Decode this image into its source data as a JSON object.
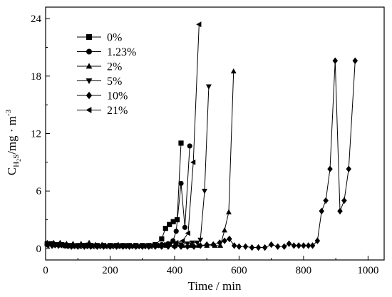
{
  "chart_data": {
    "type": "line",
    "title": "",
    "xlabel": "Time / min",
    "ylabel": {
      "main": "C",
      "sub": "H",
      "subsub": "2",
      "after_sub": "S",
      "unit": "/mg · m",
      "unit_sup": "-3"
    },
    "xlim": [
      0,
      1050
    ],
    "ylim": [
      -1.2,
      25.2
    ],
    "xticks": [
      0,
      200,
      400,
      600,
      800,
      1000
    ],
    "xtick_labels": [
      "0",
      "200",
      "400",
      "600",
      "800",
      "1000"
    ],
    "yticks": [
      0,
      6,
      12,
      18,
      24
    ],
    "ytick_labels": [
      "0",
      "6",
      "12",
      "18",
      "24"
    ],
    "grid": false,
    "legend_position": "top-left",
    "series": [
      {
        "name": "0%",
        "marker": "square",
        "points": [
          [
            5,
            0.5
          ],
          [
            20,
            0.5
          ],
          [
            35,
            0.4
          ],
          [
            50,
            0.4
          ],
          [
            65,
            0.3
          ],
          [
            80,
            0.3
          ],
          [
            100,
            0.3
          ],
          [
            120,
            0.3
          ],
          [
            140,
            0.3
          ],
          [
            160,
            0.3
          ],
          [
            180,
            0.3
          ],
          [
            200,
            0.3
          ],
          [
            220,
            0.3
          ],
          [
            240,
            0.3
          ],
          [
            260,
            0.3
          ],
          [
            280,
            0.3
          ],
          [
            300,
            0.3
          ],
          [
            320,
            0.3
          ],
          [
            340,
            0.4
          ],
          [
            360,
            1.0
          ],
          [
            372,
            2.1
          ],
          [
            384,
            2.5
          ],
          [
            396,
            2.8
          ],
          [
            408,
            3.0
          ],
          [
            420,
            11.0
          ]
        ]
      },
      {
        "name": "1.23%",
        "marker": "circle",
        "points": [
          [
            5,
            0.5
          ],
          [
            20,
            0.4
          ],
          [
            40,
            0.4
          ],
          [
            60,
            0.3
          ],
          [
            80,
            0.3
          ],
          [
            100,
            0.3
          ],
          [
            120,
            0.3
          ],
          [
            140,
            0.3
          ],
          [
            160,
            0.3
          ],
          [
            180,
            0.3
          ],
          [
            200,
            0.3
          ],
          [
            220,
            0.3
          ],
          [
            240,
            0.3
          ],
          [
            260,
            0.3
          ],
          [
            280,
            0.3
          ],
          [
            300,
            0.3
          ],
          [
            320,
            0.3
          ],
          [
            340,
            0.3
          ],
          [
            360,
            0.4
          ],
          [
            380,
            0.5
          ],
          [
            395,
            0.8
          ],
          [
            405,
            1.8
          ],
          [
            420,
            6.8
          ],
          [
            432,
            2.2
          ],
          [
            447,
            10.7
          ]
        ]
      },
      {
        "name": "2%",
        "marker": "triangle-up",
        "points": [
          [
            5,
            0.6
          ],
          [
            25,
            0.6
          ],
          [
            45,
            0.6
          ],
          [
            65,
            0.5
          ],
          [
            85,
            0.5
          ],
          [
            110,
            0.5
          ],
          [
            135,
            0.6
          ],
          [
            155,
            0.4
          ],
          [
            175,
            0.4
          ],
          [
            200,
            0.3
          ],
          [
            225,
            0.4
          ],
          [
            250,
            0.3
          ],
          [
            275,
            0.3
          ],
          [
            300,
            0.3
          ],
          [
            325,
            0.3
          ],
          [
            350,
            0.3
          ],
          [
            375,
            0.3
          ],
          [
            400,
            0.3
          ],
          [
            425,
            0.3
          ],
          [
            450,
            0.3
          ],
          [
            475,
            0.3
          ],
          [
            500,
            0.3
          ],
          [
            525,
            0.3
          ],
          [
            542,
            0.3
          ],
          [
            555,
            1.9
          ],
          [
            568,
            3.8
          ],
          [
            583,
            18.5
          ]
        ]
      },
      {
        "name": "5%",
        "marker": "triangle-down",
        "points": [
          [
            5,
            0.4
          ],
          [
            30,
            0.4
          ],
          [
            55,
            0.3
          ],
          [
            80,
            0.3
          ],
          [
            105,
            0.3
          ],
          [
            130,
            0.3
          ],
          [
            155,
            0.3
          ],
          [
            180,
            0.3
          ],
          [
            205,
            0.3
          ],
          [
            230,
            0.3
          ],
          [
            255,
            0.3
          ],
          [
            280,
            0.3
          ],
          [
            305,
            0.3
          ],
          [
            330,
            0.3
          ],
          [
            355,
            0.3
          ],
          [
            380,
            0.3
          ],
          [
            405,
            0.3
          ],
          [
            420,
            0.4
          ],
          [
            440,
            0.5
          ],
          [
            455,
            0.6
          ],
          [
            470,
            0.6
          ],
          [
            480,
            0.9
          ],
          [
            493,
            6.0
          ],
          [
            506,
            16.9
          ]
        ]
      },
      {
        "name": "10%",
        "marker": "diamond",
        "points": [
          [
            5,
            0.4
          ],
          [
            20,
            0.3
          ],
          [
            40,
            0.3
          ],
          [
            60,
            0.3
          ],
          [
            80,
            0.2
          ],
          [
            100,
            0.2
          ],
          [
            120,
            0.2
          ],
          [
            140,
            0.2
          ],
          [
            160,
            0.2
          ],
          [
            180,
            0.2
          ],
          [
            200,
            0.2
          ],
          [
            220,
            0.2
          ],
          [
            240,
            0.2
          ],
          [
            260,
            0.2
          ],
          [
            280,
            0.2
          ],
          [
            300,
            0.2
          ],
          [
            320,
            0.2
          ],
          [
            340,
            0.2
          ],
          [
            360,
            0.2
          ],
          [
            380,
            0.2
          ],
          [
            400,
            0.2
          ],
          [
            420,
            0.2
          ],
          [
            440,
            0.2
          ],
          [
            460,
            0.2
          ],
          [
            480,
            0.3
          ],
          [
            500,
            0.4
          ],
          [
            520,
            0.4
          ],
          [
            540,
            0.6
          ],
          [
            555,
            0.8
          ],
          [
            570,
            1.0
          ],
          [
            585,
            0.3
          ],
          [
            600,
            0.2
          ],
          [
            620,
            0.2
          ],
          [
            640,
            0.1
          ],
          [
            660,
            0.1
          ],
          [
            680,
            0.1
          ],
          [
            700,
            0.4
          ],
          [
            720,
            0.2
          ],
          [
            740,
            0.2
          ],
          [
            755,
            0.5
          ],
          [
            770,
            0.3
          ],
          [
            785,
            0.3
          ],
          [
            800,
            0.3
          ],
          [
            815,
            0.3
          ],
          [
            828,
            0.3
          ],
          [
            843,
            0.8
          ],
          [
            856,
            3.9
          ],
          [
            869,
            5.0
          ],
          [
            882,
            8.3
          ],
          [
            898,
            19.6
          ],
          [
            913,
            3.9
          ],
          [
            926,
            5.0
          ],
          [
            940,
            8.3
          ],
          [
            960,
            19.6
          ]
        ]
      },
      {
        "name": "21%",
        "marker": "triangle-left",
        "points": [
          [
            5,
            0.3
          ],
          [
            25,
            0.3
          ],
          [
            45,
            0.3
          ],
          [
            65,
            0.2
          ],
          [
            85,
            0.2
          ],
          [
            105,
            0.2
          ],
          [
            125,
            0.2
          ],
          [
            145,
            0.2
          ],
          [
            165,
            0.2
          ],
          [
            185,
            0.2
          ],
          [
            205,
            0.2
          ],
          [
            225,
            0.2
          ],
          [
            245,
            0.2
          ],
          [
            265,
            0.2
          ],
          [
            285,
            0.2
          ],
          [
            305,
            0.2
          ],
          [
            325,
            0.2
          ],
          [
            345,
            0.3
          ],
          [
            365,
            0.4
          ],
          [
            385,
            0.5
          ],
          [
            405,
            0.6
          ],
          [
            425,
            0.8
          ],
          [
            442,
            1.6
          ],
          [
            458,
            9.0
          ],
          [
            476,
            23.4
          ]
        ]
      }
    ]
  }
}
